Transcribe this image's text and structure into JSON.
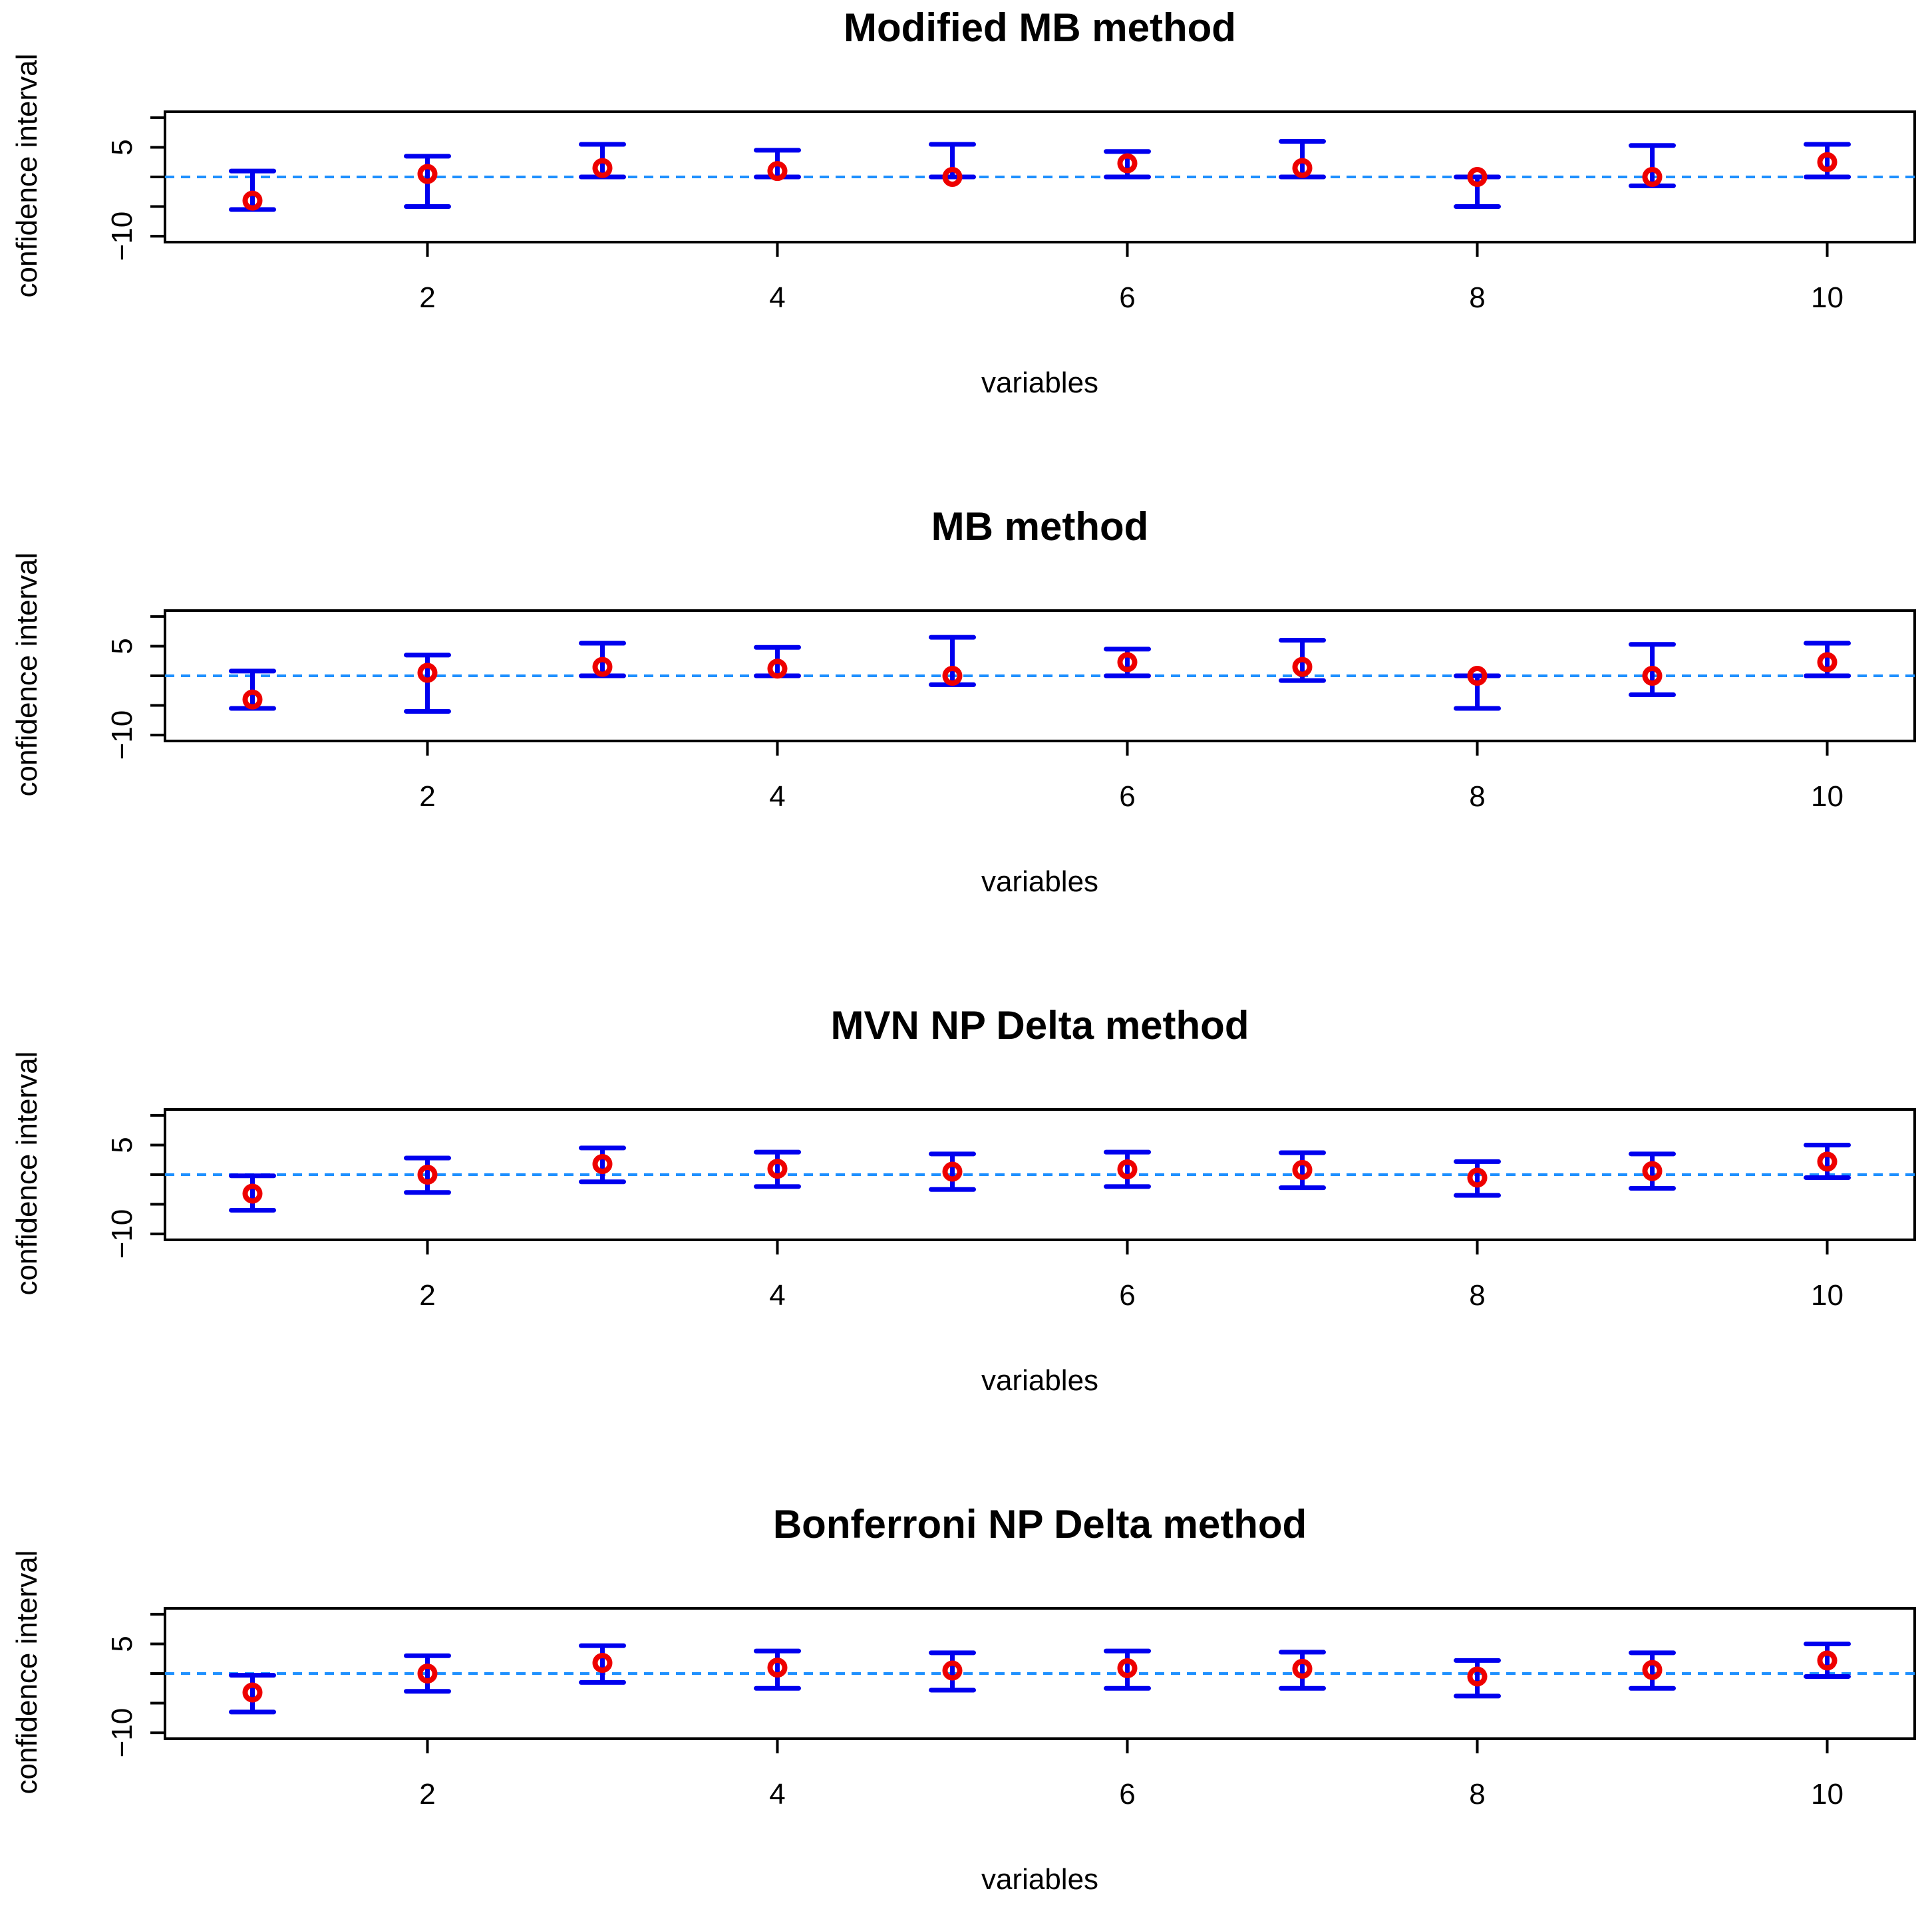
{
  "chart_data": [
    {
      "type": "errorbar",
      "title": "Modified MB method",
      "xlabel": "variables",
      "ylabel": "confidence interval",
      "xlim": [
        0.5,
        10.5
      ],
      "ylim": [
        -11,
        11
      ],
      "x_ticks": [
        2,
        4,
        6,
        8,
        10
      ],
      "x_tick_labels": [
        "2",
        "4",
        "6",
        "8",
        "10"
      ],
      "y_ticks": [
        -10,
        -5,
        0,
        5,
        10
      ],
      "y_tick_labels": [
        "−10",
        "",
        "",
        "5",
        ""
      ],
      "reference_line": 0,
      "series": [
        {
          "name": "confidence interval",
          "x": [
            1,
            2,
            3,
            4,
            5,
            6,
            7,
            8,
            9,
            10
          ],
          "estimate": [
            -4,
            0.5,
            1.5,
            1,
            0,
            2.3,
            1.5,
            0,
            0,
            2.5
          ],
          "lower": [
            -5.5,
            -5,
            0,
            0,
            0,
            0,
            0,
            -5,
            -1.5,
            0
          ],
          "upper": [
            1,
            3.5,
            5.5,
            4.5,
            5.5,
            4.3,
            6,
            0,
            5.3,
            5.5
          ]
        }
      ]
    },
    {
      "type": "errorbar",
      "title": "MB method",
      "xlabel": "variables",
      "ylabel": "confidence interval",
      "xlim": [
        0.5,
        10.5
      ],
      "ylim": [
        -11,
        11
      ],
      "x_ticks": [
        2,
        4,
        6,
        8,
        10
      ],
      "x_tick_labels": [
        "2",
        "4",
        "6",
        "8",
        "10"
      ],
      "y_ticks": [
        -10,
        -5,
        0,
        5,
        10
      ],
      "y_tick_labels": [
        "−10",
        "",
        "",
        "5",
        ""
      ],
      "reference_line": 0,
      "series": [
        {
          "name": "confidence interval",
          "x": [
            1,
            2,
            3,
            4,
            5,
            6,
            7,
            8,
            9,
            10
          ],
          "estimate": [
            -4,
            0.5,
            1.5,
            1.2,
            0,
            2.3,
            1.5,
            0,
            0,
            2.3
          ],
          "lower": [
            -5.5,
            -6,
            0,
            0,
            -1.5,
            0,
            -0.8,
            -5.5,
            -3.2,
            0
          ],
          "upper": [
            0.8,
            3.5,
            5.5,
            4.8,
            6.5,
            4.5,
            6,
            0,
            5.3,
            5.5
          ]
        }
      ]
    },
    {
      "type": "errorbar",
      "title": "MVN NP Delta method",
      "xlabel": "variables",
      "ylabel": "confidence interval",
      "xlim": [
        0.5,
        10.5
      ],
      "ylim": [
        -11,
        11
      ],
      "x_ticks": [
        2,
        4,
        6,
        8,
        10
      ],
      "x_tick_labels": [
        "2",
        "4",
        "6",
        "8",
        "10"
      ],
      "y_ticks": [
        -10,
        -5,
        0,
        5,
        10
      ],
      "y_tick_labels": [
        "−10",
        "",
        "",
        "5",
        ""
      ],
      "reference_line": 0,
      "series": [
        {
          "name": "confidence interval",
          "x": [
            1,
            2,
            3,
            4,
            5,
            6,
            7,
            8,
            9,
            10
          ],
          "estimate": [
            -3.2,
            0,
            1.8,
            1,
            0.5,
            0.9,
            0.8,
            -0.5,
            0.6,
            2.2
          ],
          "lower": [
            -6,
            -3,
            -1.2,
            -2,
            -2.5,
            -2,
            -2.2,
            -3.5,
            -2.3,
            -0.5
          ],
          "upper": [
            -0.2,
            2.8,
            4.5,
            3.8,
            3.5,
            3.8,
            3.7,
            2.2,
            3.5,
            5
          ]
        }
      ]
    },
    {
      "type": "errorbar",
      "title": "Bonferroni NP Delta method",
      "xlabel": "variables",
      "ylabel": "confidence interval",
      "xlim": [
        0.5,
        10.5
      ],
      "ylim": [
        -11,
        11
      ],
      "x_ticks": [
        2,
        4,
        6,
        8,
        10
      ],
      "x_tick_labels": [
        "2",
        "4",
        "6",
        "8",
        "10"
      ],
      "y_ticks": [
        -10,
        -5,
        0,
        5,
        10
      ],
      "y_tick_labels": [
        "−10",
        "",
        "",
        "5",
        ""
      ],
      "reference_line": 0,
      "series": [
        {
          "name": "confidence interval",
          "x": [
            1,
            2,
            3,
            4,
            5,
            6,
            7,
            8,
            9,
            10
          ],
          "estimate": [
            -3.2,
            0,
            1.8,
            1,
            0.5,
            0.9,
            0.8,
            -0.5,
            0.6,
            2.2
          ],
          "lower": [
            -6.5,
            -3,
            -1.5,
            -2.5,
            -2.8,
            -2.5,
            -2.5,
            -3.8,
            -2.5,
            -0.5
          ],
          "upper": [
            -0.3,
            3,
            4.7,
            3.8,
            3.5,
            3.8,
            3.6,
            2.2,
            3.5,
            5
          ]
        }
      ]
    }
  ]
}
